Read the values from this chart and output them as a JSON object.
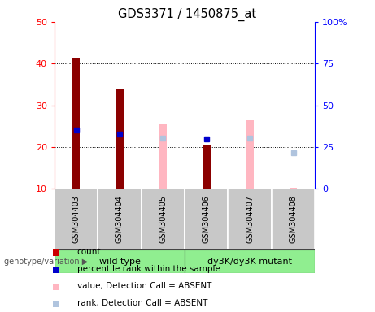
{
  "title": "GDS3371 / 1450875_at",
  "samples": [
    "GSM304403",
    "GSM304404",
    "GSM304405",
    "GSM304406",
    "GSM304407",
    "GSM304408"
  ],
  "ylim_left": [
    10,
    50
  ],
  "ylim_right": [
    0,
    100
  ],
  "yticks_left": [
    10,
    20,
    30,
    40,
    50
  ],
  "yticks_right": [
    0,
    25,
    50,
    75,
    100
  ],
  "ytick_labels_right": [
    "0",
    "25",
    "50",
    "75",
    "100%"
  ],
  "count_values": [
    41.5,
    34.0,
    null,
    20.5,
    null,
    null
  ],
  "count_color": "#8b0000",
  "rank_values": [
    35.0,
    33.0,
    null,
    30.0,
    null,
    null
  ],
  "rank_color": "#0000cc",
  "absent_value_values": [
    null,
    null,
    25.5,
    null,
    26.5,
    10.2
  ],
  "absent_value_color": "#ffb6c1",
  "absent_rank_values": [
    null,
    null,
    30.5,
    null,
    30.5,
    21.5
  ],
  "absent_rank_color": "#b0c4de",
  "bar_width": 0.18,
  "marker_size": 4,
  "legend_labels": [
    "count",
    "percentile rank within the sample",
    "value, Detection Call = ABSENT",
    "rank, Detection Call = ABSENT"
  ],
  "legend_colors": [
    "#cc0000",
    "#0000cc",
    "#ffb6c1",
    "#b0c4de"
  ],
  "wt_color": "#90ee90",
  "mut_color": "#90ee90",
  "gray_color": "#c8c8c8",
  "white": "#ffffff"
}
